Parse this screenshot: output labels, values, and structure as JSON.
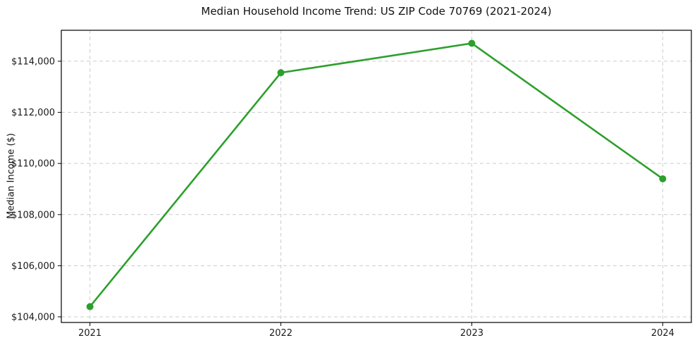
{
  "chart_data": {
    "type": "line",
    "title": "Median Household Income Trend: US ZIP Code 70769 (2021-2024)",
    "ylabel": "Median Income ($)",
    "xlabel": "",
    "categories": [
      "2021",
      "2022",
      "2023",
      "2024"
    ],
    "values": [
      104400,
      113550,
      114700,
      109400
    ],
    "x_tick_labels": [
      "2021",
      "2022",
      "2023",
      "2024"
    ],
    "y_ticks": [
      104000,
      106000,
      108000,
      110000,
      112000,
      114000
    ],
    "y_tick_labels": [
      "$104,000",
      "$106,000",
      "$108,000",
      "$110,000",
      "$112,000",
      "$114,000"
    ],
    "ylim": [
      103780,
      115210
    ],
    "grid": true,
    "grid_style": "dashed",
    "legend": "none",
    "line_color": "#2ca02c",
    "grid_color": "#cccccc",
    "axis_color": "#000000",
    "text_color": "#1a1a1a",
    "background": "#ffffff",
    "marker": "circle"
  }
}
